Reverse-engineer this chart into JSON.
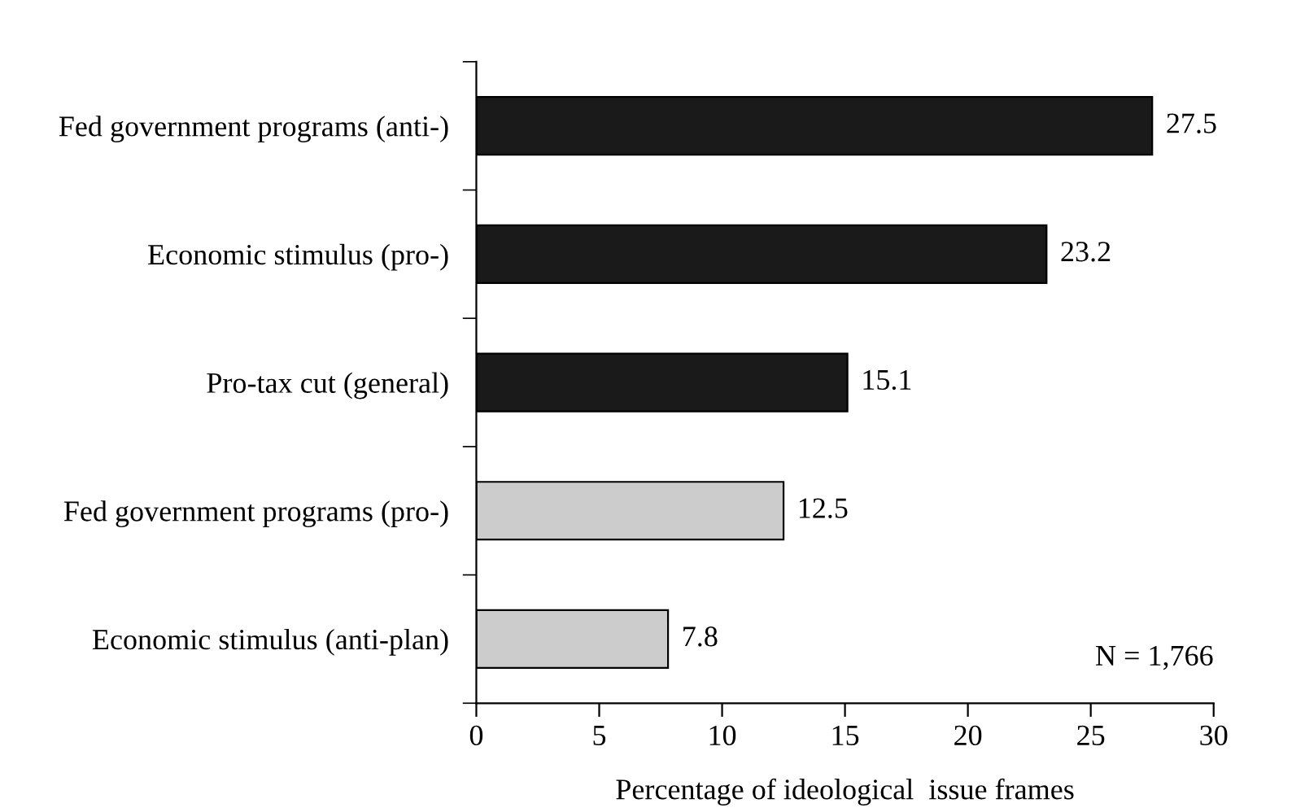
{
  "chart_data": {
    "type": "bar",
    "orientation": "horizontal",
    "xlabel": "Percentage of ideological  issue frames",
    "categories": [
      "Fed government programs (anti-)",
      "Economic stimulus (pro-)",
      "Pro-tax cut (general)",
      "Fed government programs (pro-)",
      "Economic stimulus (anti-plan)"
    ],
    "values": [
      27.5,
      23.2,
      15.1,
      12.5,
      7.8
    ],
    "colors": [
      "#1a1a1a",
      "#1a1a1a",
      "#1a1a1a",
      "#cccccc",
      "#cccccc"
    ],
    "xlim": [
      0,
      30
    ],
    "xticks": [
      0,
      5,
      10,
      15,
      20,
      25,
      30
    ],
    "data_labels": true,
    "grid": false,
    "legend": false,
    "annotations": [
      "N = 1,766"
    ]
  }
}
